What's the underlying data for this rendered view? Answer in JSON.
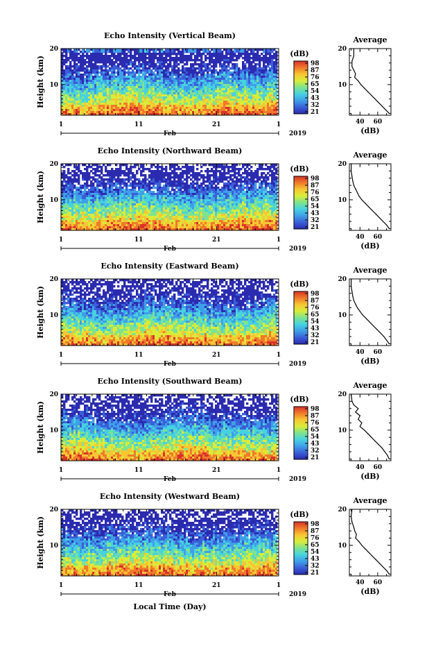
{
  "figure": {
    "xlabel": "Local Time (Day)",
    "month_label": "Feb",
    "year_label": "2019"
  },
  "colors": {
    "colormap": [
      "#2b2bb0",
      "#3a5fd9",
      "#3f9fe8",
      "#46d2e0",
      "#7de38f",
      "#d9ec3a",
      "#f7c633",
      "#f07a2a",
      "#d8322a"
    ],
    "axes": "#000000"
  },
  "chart_data": [
    {
      "type": "heatmap",
      "title": "Echo Intensity (Vertical Beam)",
      "ylabel": "Height (km)",
      "x_ticks": [
        "1",
        "11",
        "21",
        "1"
      ],
      "y_ticks": [
        "10",
        "20"
      ],
      "ylim": [
        1.5,
        20
      ],
      "colorbar": {
        "label": "(dB)",
        "ticks": [
          "98",
          "87",
          "76",
          "65",
          "54",
          "43",
          "32",
          "21"
        ]
      },
      "profile": {
        "title": "Average",
        "xlabel": "(dB)",
        "x_ticks": [
          "40",
          "60"
        ],
        "y_ticks": [
          "10",
          "20"
        ],
        "xlim": [
          28,
          75
        ],
        "ylim": [
          1.5,
          20
        ],
        "heights": [
          20,
          18,
          16.5,
          15,
          14,
          13,
          12,
          11,
          10,
          9,
          8,
          7,
          6,
          5,
          4,
          3,
          2
        ],
        "values": [
          33,
          33,
          31,
          31,
          33,
          35,
          34,
          38,
          41,
          45,
          49,
          53,
          57,
          61,
          65,
          69,
          73
        ]
      }
    },
    {
      "type": "heatmap",
      "title": "Echo Intensity (Northward Beam)",
      "ylabel": "Height (km)",
      "x_ticks": [
        "1",
        "11",
        "21",
        "1"
      ],
      "y_ticks": [
        "10",
        "20"
      ],
      "ylim": [
        1.5,
        20
      ],
      "colorbar": {
        "label": "(dB)",
        "ticks": [
          "98",
          "87",
          "76",
          "65",
          "54",
          "43",
          "32",
          "21"
        ]
      },
      "profile": {
        "title": "Average",
        "xlabel": "(dB)",
        "x_ticks": [
          "40",
          "60"
        ],
        "y_ticks": [
          "10",
          "20"
        ],
        "xlim": [
          28,
          75
        ],
        "ylim": [
          1.5,
          20
        ],
        "heights": [
          20,
          18,
          16.5,
          15,
          14,
          13,
          12,
          11,
          10,
          9,
          8,
          7,
          6,
          5,
          4,
          3,
          2
        ],
        "values": [
          30,
          30,
          31,
          32,
          33,
          35,
          37,
          39,
          42,
          46,
          50,
          54,
          58,
          62,
          66,
          70,
          73
        ]
      }
    },
    {
      "type": "heatmap",
      "title": "Echo Intensity (Eastward Beam)",
      "ylabel": "Height (km)",
      "x_ticks": [
        "1",
        "11",
        "21",
        "1"
      ],
      "y_ticks": [
        "10",
        "20"
      ],
      "ylim": [
        1.5,
        20
      ],
      "colorbar": {
        "label": "(dB)",
        "ticks": [
          "98",
          "87",
          "76",
          "65",
          "54",
          "43",
          "32",
          "21"
        ]
      },
      "profile": {
        "title": "Average",
        "xlabel": "(dB)",
        "x_ticks": [
          "40",
          "60"
        ],
        "y_ticks": [
          "10",
          "20"
        ],
        "xlim": [
          28,
          75
        ],
        "ylim": [
          1.5,
          20
        ],
        "heights": [
          20,
          18,
          16.5,
          15,
          14,
          13,
          12,
          11,
          10,
          9,
          8,
          7,
          6,
          5,
          4,
          3,
          2
        ],
        "values": [
          30,
          30,
          31,
          32,
          33,
          35,
          37,
          40,
          43,
          47,
          51,
          55,
          59,
          63,
          67,
          70,
          73
        ]
      }
    },
    {
      "type": "heatmap",
      "title": "Echo Intensity (Southward Beam)",
      "ylabel": "Height (km)",
      "x_ticks": [
        "1",
        "11",
        "21",
        "1"
      ],
      "y_ticks": [
        "10",
        "20"
      ],
      "ylim": [
        1.5,
        20
      ],
      "colorbar": {
        "label": "(dB)",
        "ticks": [
          "98",
          "87",
          "76",
          "65",
          "54",
          "43",
          "32",
          "21"
        ]
      },
      "profile": {
        "title": "Average",
        "xlabel": "(dB)",
        "x_ticks": [
          "40",
          "60"
        ],
        "y_ticks": [
          "10",
          "20"
        ],
        "xlim": [
          28,
          75
        ],
        "ylim": [
          1.5,
          20
        ],
        "heights": [
          20,
          18,
          17,
          16,
          15,
          14,
          13,
          12,
          11,
          10,
          9,
          8,
          7,
          6,
          5,
          4,
          3,
          2
        ],
        "values": [
          30,
          31,
          33,
          38,
          35,
          40,
          38,
          42,
          40,
          45,
          49,
          53,
          57,
          61,
          65,
          68,
          71,
          73
        ]
      }
    },
    {
      "type": "heatmap",
      "title": "Echo Intensity (Westward Beam)",
      "ylabel": "Height (km)",
      "x_ticks": [
        "1",
        "11",
        "21",
        "1"
      ],
      "y_ticks": [
        "10",
        "20"
      ],
      "ylim": [
        1.5,
        20
      ],
      "colorbar": {
        "label": "(dB)",
        "ticks": [
          "98",
          "87",
          "76",
          "65",
          "54",
          "43",
          "32",
          "21"
        ]
      },
      "profile": {
        "title": "Average",
        "xlabel": "(dB)",
        "x_ticks": [
          "40",
          "60"
        ],
        "y_ticks": [
          "10",
          "20"
        ],
        "xlim": [
          28,
          75
        ],
        "ylim": [
          1.5,
          20
        ],
        "heights": [
          20,
          18,
          16.5,
          15,
          14,
          13,
          12,
          11,
          10,
          9,
          8,
          7,
          6,
          5,
          4,
          3,
          2
        ],
        "values": [
          31,
          30,
          31,
          33,
          34,
          36,
          35,
          39,
          42,
          46,
          50,
          54,
          58,
          62,
          66,
          70,
          73
        ]
      }
    }
  ]
}
